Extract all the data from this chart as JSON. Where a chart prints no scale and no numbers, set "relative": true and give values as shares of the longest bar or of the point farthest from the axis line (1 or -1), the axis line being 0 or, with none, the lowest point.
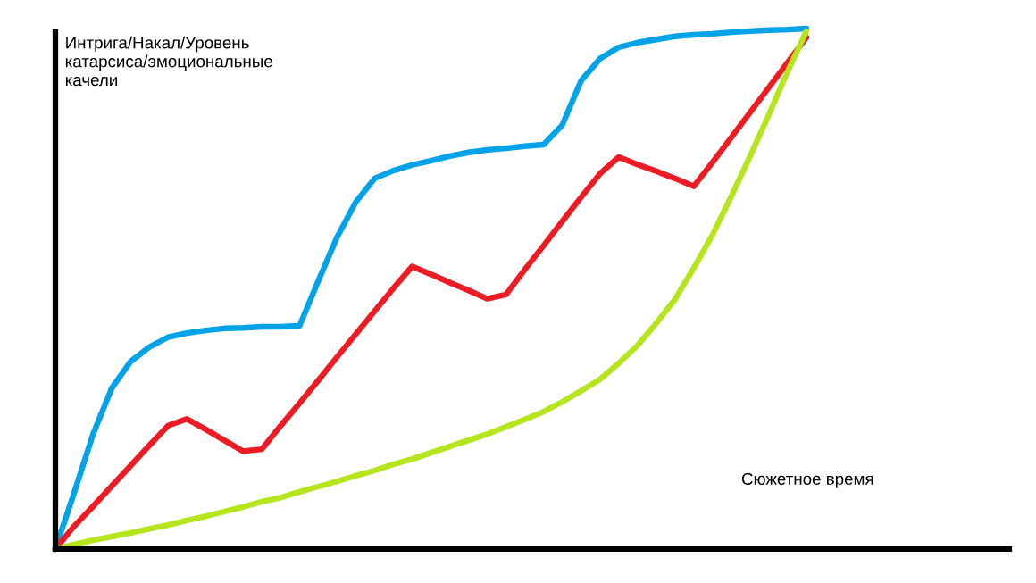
{
  "chart_data": {
    "type": "line",
    "relative": true,
    "ylabel": "Интрига/Накал/Уровень\nкатарсиса/эмоциональные\nкачели",
    "xlabel": "Сюжетное время",
    "marker": "none",
    "line_style": "solid",
    "categories": [
      null,
      null,
      null,
      null,
      null,
      null,
      null,
      null,
      null,
      null,
      null,
      null,
      null,
      null,
      null,
      null,
      null,
      null,
      null,
      null,
      null,
      null,
      null,
      null,
      null,
      null,
      null,
      null,
      null,
      null,
      null,
      null,
      null,
      null,
      null,
      null,
      null,
      null,
      null,
      null,
      null
    ],
    "series": [
      {
        "color": "#00a2e8",
        "values": [
          0,
          0.108,
          0.22,
          0.309,
          0.36,
          0.388,
          0.407,
          0.415,
          0.42,
          0.424,
          0.425,
          0.427,
          0.427,
          0.429,
          0.515,
          0.599,
          0.667,
          0.712,
          0.727,
          0.738,
          0.746,
          0.755,
          0.762,
          0.767,
          0.77,
          0.774,
          0.777,
          0.815,
          0.9,
          0.942,
          0.964,
          0.973,
          0.979,
          0.985,
          0.988,
          0.99,
          0.993,
          0.995,
          0.997,
          0.998,
          1
        ]
      },
      {
        "color": "#ed1c24",
        "values": [
          0,
          0.044,
          0.082,
          0.121,
          0.16,
          0.199,
          0.237,
          0.25,
          0.23,
          0.209,
          0.188,
          0.192,
          0.237,
          0.28,
          0.324,
          0.369,
          0.413,
          0.457,
          0.501,
          0.543,
          0.528,
          0.512,
          0.497,
          0.481,
          0.489,
          0.537,
          0.583,
          0.63,
          0.676,
          0.721,
          0.753,
          0.739,
          0.726,
          0.712,
          0.697,
          0.743,
          0.791,
          0.839,
          0.887,
          0.935,
          0.983
        ]
      },
      {
        "color": "#b5e61d",
        "values": [
          0,
          0.009,
          0.017,
          0.024,
          0.031,
          0.039,
          0.046,
          0.055,
          0.063,
          0.072,
          0.081,
          0.091,
          0.099,
          0.11,
          0.12,
          0.13,
          0.141,
          0.151,
          0.163,
          0.173,
          0.185,
          0.197,
          0.209,
          0.221,
          0.235,
          0.249,
          0.264,
          0.283,
          0.304,
          0.326,
          0.357,
          0.391,
          0.434,
          0.48,
          0.54,
          0.604,
          0.678,
          0.755,
          0.835,
          0.918,
          0.995
        ]
      }
    ]
  }
}
